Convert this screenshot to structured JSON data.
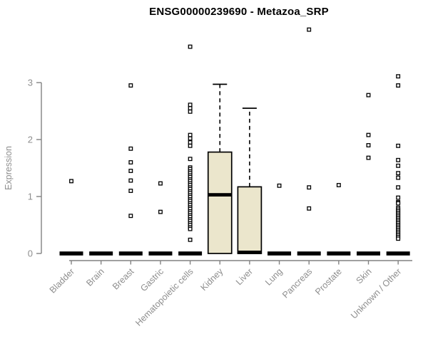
{
  "chart_data": {
    "type": "boxplot",
    "title": "ENSG00000239690 - Metazoa_SRP",
    "ylabel": "Expression",
    "axis_range": [
      0,
      3
    ],
    "yticks": [
      0,
      1,
      2,
      3
    ],
    "grid": false,
    "legend": null,
    "categories": [
      "Bladder",
      "Brain",
      "Breast",
      "Gastric",
      "Hematopoietic cells",
      "Kidney",
      "Liver",
      "Lung",
      "Pancreas",
      "Prostate",
      "Skin",
      "Unknown / Other"
    ],
    "colors": {
      "box_fill": "#EBE6CC",
      "box_stroke": "#000000",
      "axis": "#828282",
      "tick_label": "#8e8e8e",
      "title": "#000000"
    },
    "series": [
      {
        "name": "Bladder",
        "q1": 0,
        "median": 0,
        "q3": 0,
        "whisker_low": 0,
        "whisker_high": 0,
        "outliers": [
          1.27
        ]
      },
      {
        "name": "Brain",
        "q1": 0,
        "median": 0,
        "q3": 0,
        "whisker_low": 0,
        "whisker_high": 0,
        "outliers": []
      },
      {
        "name": "Breast",
        "q1": 0,
        "median": 0,
        "q3": 0,
        "whisker_low": 0,
        "whisker_high": 0,
        "outliers": [
          2.95,
          1.84,
          1.6,
          1.45,
          1.28,
          1.1,
          0.66
        ]
      },
      {
        "name": "Gastric",
        "q1": 0,
        "median": 0,
        "q3": 0,
        "whisker_low": 0,
        "whisker_high": 0,
        "outliers": [
          1.23,
          0.73
        ]
      },
      {
        "name": "Hematopoietic cells",
        "q1": 0,
        "median": 0,
        "q3": 0,
        "whisker_low": 0,
        "whisker_high": 0,
        "outliers": [
          3.63,
          2.61,
          2.55,
          2.49,
          2.08,
          2.02,
          1.95,
          1.89,
          1.66,
          1.51,
          1.48,
          1.44,
          1.41,
          1.37,
          1.34,
          1.3,
          1.27,
          1.23,
          1.2,
          1.16,
          1.13,
          1.09,
          1.06,
          1.02,
          0.99,
          0.95,
          0.92,
          0.88,
          0.85,
          0.81,
          0.78,
          0.74,
          0.71,
          0.67,
          0.64,
          0.6,
          0.57,
          0.53,
          0.5,
          0.46,
          0.43,
          0.24
        ]
      },
      {
        "name": "Kidney",
        "q1": 0,
        "median": 1.03,
        "q3": 1.78,
        "whisker_low": 0,
        "whisker_high": 2.97,
        "outliers": []
      },
      {
        "name": "Liver",
        "q1": 0,
        "median": 0.02,
        "q3": 1.17,
        "whisker_low": 0,
        "whisker_high": 2.55,
        "outliers": []
      },
      {
        "name": "Lung",
        "q1": 0,
        "median": 0,
        "q3": 0,
        "whisker_low": 0,
        "whisker_high": 0,
        "outliers": [
          1.19
        ]
      },
      {
        "name": "Pancreas",
        "q1": 0,
        "median": 0,
        "q3": 0,
        "whisker_low": 0,
        "whisker_high": 0,
        "outliers": [
          3.93,
          1.16,
          0.79
        ]
      },
      {
        "name": "Prostate",
        "q1": 0,
        "median": 0,
        "q3": 0,
        "whisker_low": 0,
        "whisker_high": 0,
        "outliers": [
          1.2
        ]
      },
      {
        "name": "Skin",
        "q1": 0,
        "median": 0,
        "q3": 0,
        "whisker_low": 0,
        "whisker_high": 0,
        "outliers": [
          2.78,
          2.08,
          1.9,
          1.68
        ]
      },
      {
        "name": "Unknown / Other",
        "q1": 0,
        "median": 0,
        "q3": 0,
        "whisker_low": 0,
        "whisker_high": 0,
        "outliers": [
          3.11,
          2.95,
          1.89,
          1.64,
          1.54,
          1.41,
          1.33,
          1.16,
          0.98,
          0.9,
          0.88,
          0.8,
          0.77,
          0.74,
          0.71,
          0.68,
          0.65,
          0.62,
          0.59,
          0.56,
          0.53,
          0.5,
          0.47,
          0.44,
          0.41,
          0.38,
          0.35,
          0.32,
          0.29,
          0.26
        ]
      }
    ]
  }
}
